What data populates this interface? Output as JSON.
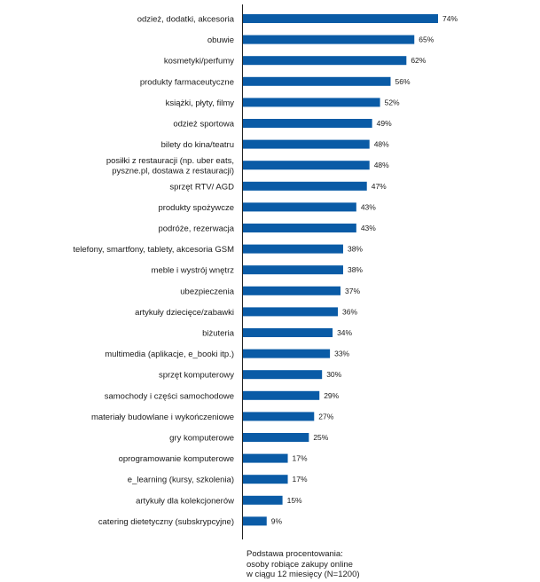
{
  "chart_data": {
    "type": "bar",
    "orientation": "horizontal",
    "unit": "%",
    "categories": [
      [
        "odzież, dodatki, akcesoria"
      ],
      [
        "obuwie"
      ],
      [
        "kosmetyki/perfumy"
      ],
      [
        "produkty farmaceutyczne"
      ],
      [
        "książki, płyty, filmy"
      ],
      [
        "odzież sportowa"
      ],
      [
        "bilety do kina/teatru"
      ],
      [
        "posiłki z restauracji (np. uber eats,",
        "pyszne.pl, dostawa z restauracji)"
      ],
      [
        "sprzęt RTV/ AGD"
      ],
      [
        "produkty spożywcze"
      ],
      [
        "podróże, rezerwacja"
      ],
      [
        "telefony, smartfony, tablety, akcesoria GSM"
      ],
      [
        "meble i wystrój wnętrz"
      ],
      [
        "ubezpieczenia"
      ],
      [
        "artykuły dziecięce/zabawki"
      ],
      [
        "biżuteria"
      ],
      [
        "multimedia (aplikacje, e_booki itp.)"
      ],
      [
        "sprzęt komputerowy"
      ],
      [
        "samochody i części samochodowe"
      ],
      [
        "materiały budowlane i wykończeniowe"
      ],
      [
        "gry komputerowe"
      ],
      [
        "oprogramowanie komputerowe"
      ],
      [
        "e_learning (kursy, szkolenia)"
      ],
      [
        "artykuły dla kolekcjonerów"
      ],
      [
        "catering dietetyczny (subskrypcyjne)"
      ]
    ],
    "values": [
      74,
      65,
      62,
      56,
      52,
      49,
      48,
      48,
      47,
      43,
      43,
      38,
      38,
      37,
      36,
      34,
      33,
      30,
      29,
      27,
      25,
      17,
      17,
      15,
      9
    ],
    "value_labels": [
      "74%",
      "65%",
      "62%",
      "56%",
      "52%",
      "49%",
      "48%",
      "48%",
      "47%",
      "43%",
      "43%",
      "38%",
      "38%",
      "37%",
      "36%",
      "34%",
      "33%",
      "30%",
      "29%",
      "27%",
      "25%",
      "17%",
      "17%",
      "15%",
      "9%"
    ],
    "xlim": [
      0,
      100
    ],
    "grid": false,
    "legend": "none",
    "bar_color": "#0a5ba6"
  },
  "footnote": {
    "line1": "Podstawa procentowania:",
    "line2": "osoby robiące zakupy online",
    "line3": "w ciągu 12 miesięcy (N=1200)"
  }
}
